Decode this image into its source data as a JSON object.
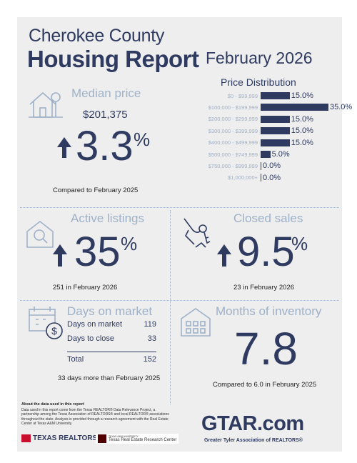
{
  "header": {
    "county": "Cherokee County",
    "report": "Housing Report",
    "month": "February 2026"
  },
  "median_price": {
    "title": "Median price",
    "value": "$201,375",
    "change": "3.3",
    "pct": "%",
    "caption": "Compared to February 2025"
  },
  "price_distribution": {
    "title": "Price Distribution",
    "rows": [
      {
        "label": "$0 - $99,999",
        "value": "15.0%"
      },
      {
        "label": "$100,000 - $199,999",
        "value": "35.0%"
      },
      {
        "label": "$200,000 - $299,999",
        "value": "15.0%"
      },
      {
        "label": "$300,000 - $399,999",
        "value": "15.0%"
      },
      {
        "label": "$400,000 - $499,999",
        "value": "15.0%"
      },
      {
        "label": "$500,000 - $749,999",
        "value": "5.0%"
      },
      {
        "label": "$750,000 - $999,999",
        "value": "0.0%"
      },
      {
        "label": "$1,000,000+",
        "value": "0.0%"
      }
    ],
    "percents": [
      15.0,
      35.0,
      15.0,
      15.0,
      15.0,
      5.0,
      0.0,
      0.0
    ]
  },
  "active_listings": {
    "title": "Active listings",
    "change": "35",
    "pct": "%",
    "caption": "251 in February 2026"
  },
  "closed_sales": {
    "title": "Closed sales",
    "change": "9.5",
    "pct": "%",
    "caption": "23 in February 2026"
  },
  "days_on_market": {
    "title": "Days on market",
    "rows": [
      {
        "label": "Days on market",
        "value": "119"
      },
      {
        "label": "Days to close",
        "value": "33"
      }
    ],
    "total_label": "Total",
    "total_value": "152",
    "caption": "33 days more than February 2025"
  },
  "months_inventory": {
    "title": "Months of inventory",
    "value": "7.8",
    "caption": "Compared to 6.0 in February 2025"
  },
  "footer": {
    "about_title": "About the data used in this report",
    "about_text": "Data used in this report come from the Texas REALTOR® Data Relevance Project, a partnership among the Texas Association of REALTORS® and local REALTOR® associations throughout the state. Analysis is provided through a research agreement with the Real Estate Center at Texas A&M University.",
    "texas_realtors": "TEXAS REALTORS",
    "tamu_small": "TEXAS A&M UNIVERSITY",
    "tamu_center": "Texas Real Estate Research Center",
    "gtar_brand": "GTAR.com",
    "gtar_tagline": "Greater Tyler Association of REALTORS®"
  },
  "colors": {
    "navy": "#2e3a5f",
    "light": "#9fb1c7",
    "red": "#c8102e",
    "background": "#eeeeef"
  }
}
